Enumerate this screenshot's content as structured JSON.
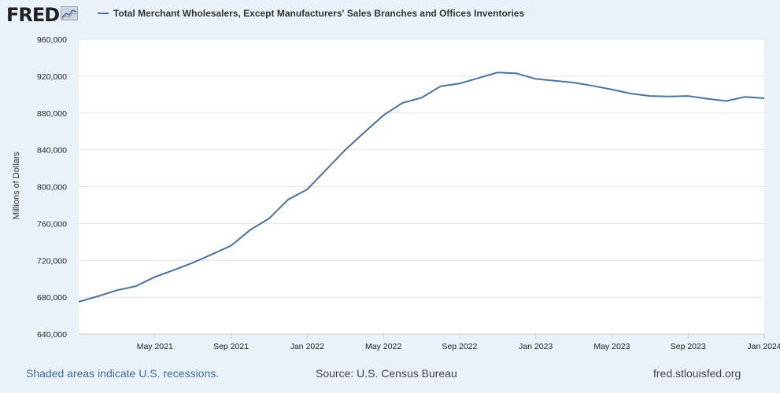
{
  "header": {
    "logo_text": "FRED",
    "logo_icon": "chart-line-icon"
  },
  "chart_data": {
    "type": "line",
    "title": "Total Merchant Wholesalers, Except Manufacturers' Sales Branches and Offices Inventories",
    "ylabel": "Millions of Dollars",
    "xlabel": "",
    "ylim": [
      640000,
      960000
    ],
    "yticks": [
      640000,
      680000,
      720000,
      760000,
      800000,
      840000,
      880000,
      920000,
      960000
    ],
    "ytick_labels": [
      "640,000",
      "680,000",
      "720,000",
      "760,000",
      "800,000",
      "840,000",
      "880,000",
      "920,000",
      "960,000"
    ],
    "xlim": [
      "2021-01",
      "2024-01"
    ],
    "xticks": [
      {
        "date": "2021-05",
        "label": "May 2021"
      },
      {
        "date": "2021-09",
        "label": "Sep 2021"
      },
      {
        "date": "2022-01",
        "label": "Jan 2022"
      },
      {
        "date": "2022-05",
        "label": "May 2022"
      },
      {
        "date": "2022-09",
        "label": "Sep 2022"
      },
      {
        "date": "2023-01",
        "label": "Jan 2023"
      },
      {
        "date": "2023-05",
        "label": "May 2023"
      },
      {
        "date": "2023-09",
        "label": "Sep 2023"
      },
      {
        "date": "2024-01",
        "label": "Jan 2024"
      }
    ],
    "grid": true,
    "series": [
      {
        "name": "Total Merchant Wholesalers, Except Manufacturers' Sales Branches and Offices Inventories",
        "color": "#4572a7",
        "x": [
          "2021-01",
          "2021-02",
          "2021-03",
          "2021-04",
          "2021-05",
          "2021-06",
          "2021-07",
          "2021-08",
          "2021-09",
          "2021-10",
          "2021-11",
          "2021-12",
          "2022-01",
          "2022-02",
          "2022-03",
          "2022-04",
          "2022-05",
          "2022-06",
          "2022-07",
          "2022-08",
          "2022-09",
          "2022-10",
          "2022-11",
          "2022-12",
          "2023-01",
          "2023-02",
          "2023-03",
          "2023-04",
          "2023-05",
          "2023-06",
          "2023-07",
          "2023-08",
          "2023-09",
          "2023-10",
          "2023-11",
          "2023-12",
          "2024-01"
        ],
        "values": [
          675000,
          681000,
          687500,
          692000,
          702000,
          709500,
          717500,
          726500,
          736000,
          753000,
          765500,
          786000,
          797000,
          818500,
          840000,
          859000,
          877500,
          891000,
          896500,
          909000,
          912000,
          918000,
          924000,
          923000,
          917000,
          915000,
          913000,
          909500,
          905500,
          901000,
          898500,
          898000,
          898500,
          895500,
          893000,
          897500,
          896000
        ]
      }
    ]
  },
  "footer": {
    "recession_note": "Shaded areas indicate U.S. recessions.",
    "source": "Source: U.S. Census Bureau",
    "site": "fred.stlouisfed.org"
  }
}
